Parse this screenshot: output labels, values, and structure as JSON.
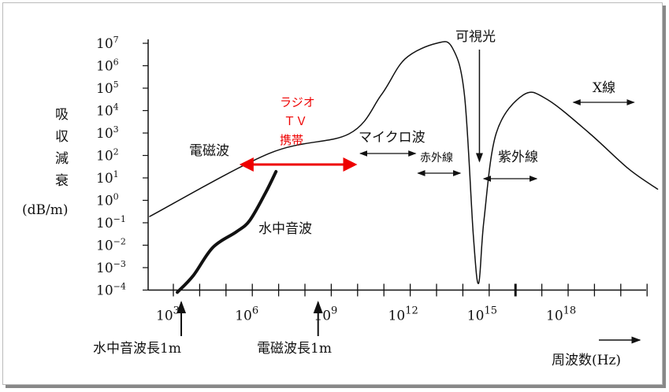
{
  "chart_data": {
    "type": "line",
    "title": "",
    "xlabel": "周波数(Hz)",
    "ylabel": "吸収減衰",
    "yunit": "(dB/m)",
    "xscale": "log",
    "yscale": "log",
    "xlim_log10": [
      2,
      23.8
    ],
    "ylim_log10": [
      -4,
      7
    ],
    "x_ticks_log10": [
      3,
      4,
      5,
      6,
      7,
      8,
      9,
      10,
      11,
      12,
      13,
      14,
      15,
      16,
      17,
      18,
      19,
      20,
      21,
      22,
      23
    ],
    "x_tick_labels": [
      {
        "exp": 3,
        "label": "10",
        "sup": "3"
      },
      {
        "exp": 6,
        "label": "10",
        "sup": "6"
      },
      {
        "exp": 9,
        "label": "10",
        "sup": "9"
      },
      {
        "exp": 12,
        "label": "10",
        "sup": "12"
      },
      {
        "exp": 15,
        "label": "10",
        "sup": "15"
      },
      {
        "exp": 18,
        "label": "10",
        "sup": "18"
      }
    ],
    "y_tick_labels": [
      {
        "exp": 7,
        "sup": "7"
      },
      {
        "exp": 6,
        "sup": "6"
      },
      {
        "exp": 5,
        "sup": "5"
      },
      {
        "exp": 4,
        "sup": "4"
      },
      {
        "exp": 3,
        "sup": "3"
      },
      {
        "exp": 2,
        "sup": "2"
      },
      {
        "exp": 1,
        "sup": "1"
      },
      {
        "exp": 0,
        "sup": "0"
      },
      {
        "exp": -1,
        "sup": "−1"
      },
      {
        "exp": -2,
        "sup": "−2"
      },
      {
        "exp": -3,
        "sup": "−3"
      },
      {
        "exp": -4,
        "sup": "−4"
      }
    ],
    "series": [
      {
        "name": "電磁波",
        "points_log10": [
          [
            2.1,
            -0.72
          ],
          [
            6.64,
            2.09
          ],
          [
            9.67,
            2.96
          ],
          [
            10.9,
            4.7
          ],
          [
            11.8,
            6.3
          ],
          [
            13.0,
            7.0
          ],
          [
            13.6,
            6.8
          ],
          [
            14.06,
            4.7
          ],
          [
            14.4,
            -1.6
          ],
          [
            14.6,
            -3.7
          ],
          [
            14.8,
            -0.9
          ],
          [
            15.27,
            3.0
          ],
          [
            16.3,
            4.7
          ],
          [
            17.2,
            4.5
          ],
          [
            18.8,
            3.0
          ],
          [
            20.3,
            1.4
          ],
          [
            21.4,
            0.5
          ]
        ],
        "stroke": 1.5
      },
      {
        "name": "水中音波",
        "points_log10": [
          [
            3.15,
            -4.1
          ],
          [
            3.76,
            -3.35
          ],
          [
            4.5,
            -2.1
          ],
          [
            5.4,
            -1.4
          ],
          [
            5.9,
            -0.9
          ],
          [
            6.5,
            0.33
          ],
          [
            6.9,
            1.28
          ]
        ],
        "stroke": 4
      }
    ],
    "annotations": {
      "radio": {
        "lines": [
          "ラジオ",
          "ＴＶ",
          "携帯"
        ],
        "range_log10": [
          5.6,
          9.9
        ],
        "color": "#e60000"
      },
      "microwave": {
        "label": "マイクロ波",
        "range_log10": [
          10.1,
          12.2
        ]
      },
      "infrared": {
        "label": "赤外線",
        "range_log10": [
          12.3,
          13.9
        ]
      },
      "visible": {
        "label": "可視光",
        "at_log10": 14.6
      },
      "ultraviolet": {
        "label": "紫外線",
        "range_log10": [
          14.8,
          16.8
        ]
      },
      "xray": {
        "label": "X線",
        "range_log10": [
          18.2,
          20.5
        ]
      },
      "sound_1m": {
        "label": "水中音波長1m",
        "at_log10": 3.3
      },
      "em_1m": {
        "label": "電磁波長1m",
        "at_log10": 8.5
      }
    }
  }
}
